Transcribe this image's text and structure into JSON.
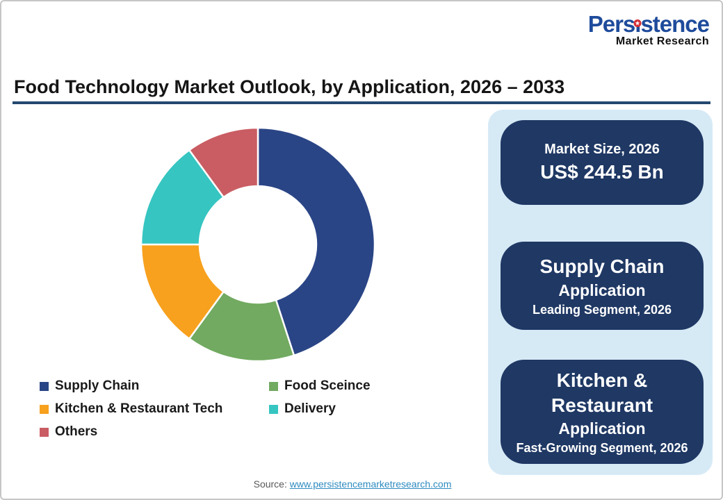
{
  "page": {
    "logo": {
      "part1": "Pers",
      "dotless_i": "ı",
      "part2": "stence",
      "subtitle": "Market Research"
    },
    "title": "Food Technology Market Outlook, by Application, 2026 – 2033",
    "source_label": "Source:",
    "source_link": "www.persistencemarketresearch.com"
  },
  "chart_data": {
    "type": "pie",
    "subtype": "donut",
    "title": "Food Technology Market Outlook, by Application, 2026 – 2033",
    "donut_hole_ratio": 0.5,
    "start_angle_deg": 0,
    "direction": "clockwise",
    "legend_position": "bottom",
    "unit": "% (estimated from arc angles, no data labels shown)",
    "series": [
      {
        "name": "Supply Chain",
        "value": 45,
        "color": "#2a4586",
        "slug": "supply-chain"
      },
      {
        "name": "Food Sceince",
        "value": 15,
        "color": "#71aa60",
        "slug": "food-science"
      },
      {
        "name": "Kitchen & Restaurant Tech",
        "value": 15,
        "color": "#f7a11e",
        "slug": "kitchen-restaurant-tech"
      },
      {
        "name": "Delivery",
        "value": 15,
        "color": "#36c5c1",
        "slug": "delivery"
      },
      {
        "name": "Others",
        "value": 10,
        "color": "#c95d63",
        "slug": "others"
      }
    ]
  },
  "panel": {
    "cards": [
      {
        "line1": "Market Size, 2026",
        "line2": "US$ 244.5 Bn"
      },
      {
        "title": "Supply Chain",
        "subtitle": "Application",
        "caption": "Leading Segment, 2026"
      },
      {
        "title_line1": "Kitchen &",
        "title_line2": "Restaurant",
        "subtitle": "Application",
        "caption": "Fast-Growing Segment, 2026"
      }
    ]
  },
  "colors": {
    "card_bg": "#1f3864",
    "panel_bg": "#d6eaf6",
    "title_rule": "#24486f",
    "logo_blue": "#1e4b9b",
    "logo_dot_red": "#d42e34",
    "link": "#2e8bc0",
    "source_gray": "#595959"
  }
}
